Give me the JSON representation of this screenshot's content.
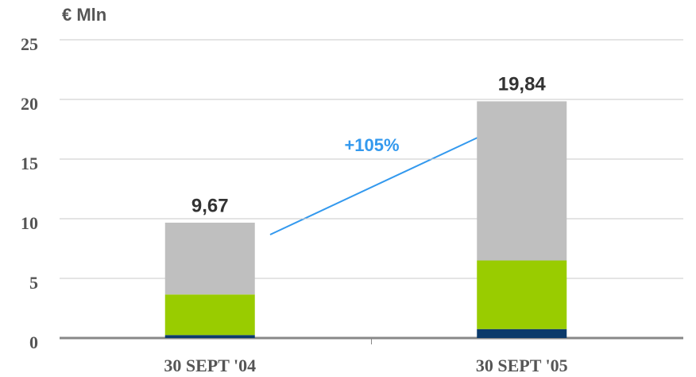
{
  "chart_data": {
    "type": "stacked_bar",
    "y_label": "€ Mln",
    "categories": [
      "30 SEPT '04",
      "30 SEPT '05"
    ],
    "series": [
      {
        "color": "#0b3a6b",
        "values": [
          0.25,
          0.75
        ]
      },
      {
        "color": "#99cc00",
        "values": [
          3.4,
          5.75
        ]
      },
      {
        "color": "#bfbfbf",
        "values": [
          6.02,
          13.34
        ]
      }
    ],
    "totals": [
      9.67,
      19.84
    ],
    "total_labels": [
      "9,67",
      "19,84"
    ],
    "annotation": "+105%",
    "ylim": [
      0,
      25
    ],
    "yticks": [
      0,
      5,
      10,
      15,
      20,
      25
    ],
    "grid": true
  }
}
